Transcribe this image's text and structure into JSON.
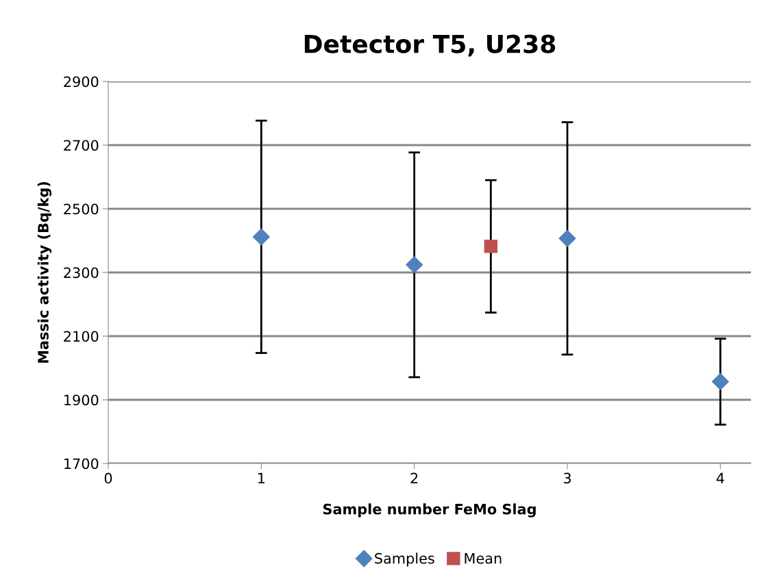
{
  "chart_data": {
    "type": "scatter",
    "title": "Detector T5, U238",
    "xlabel": "Sample number FeMo Slag",
    "ylabel": "Massic activity (Bq/kg)",
    "series": [
      {
        "name": "Samples",
        "color": "#4f81bd",
        "marker": "diamond",
        "x": [
          1,
          2,
          3,
          4
        ],
        "values": [
          2412,
          2324,
          2407,
          1957
        ],
        "errors": [
          365,
          353,
          365,
          135
        ]
      },
      {
        "name": "Mean",
        "color": "#c0504d",
        "marker": "square",
        "x": [
          2.5
        ],
        "values": [
          2382
        ],
        "errors": [
          208
        ]
      }
    ],
    "xlim": [
      0,
      4.2
    ],
    "xticks": [
      0,
      1,
      2,
      3,
      4
    ],
    "ylim": [
      1700,
      2900
    ],
    "yticks": [
      1700,
      1900,
      2100,
      2300,
      2500,
      2700,
      2900
    ],
    "grid": "y",
    "legend": "bottom"
  }
}
